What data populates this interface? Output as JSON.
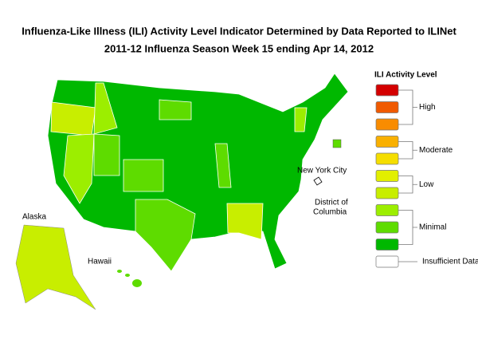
{
  "title": {
    "line1": "Influenza-Like Illness (ILI) Activity Level Indicator Determined by Data Reported to ILINet",
    "line2": "2011-12  Influenza Season Week  15 ending Apr 14, 2012"
  },
  "legend": {
    "title": "ILI Activity Level",
    "groups": [
      {
        "label": "High",
        "colors": [
          "#d40000",
          "#f05a00",
          "#f98c00"
        ]
      },
      {
        "label": "Moderate",
        "colors": [
          "#f9b000",
          "#f5de00"
        ]
      },
      {
        "label": "Low",
        "colors": [
          "#e2ef00",
          "#c8ee00"
        ]
      },
      {
        "label": "Minimal",
        "colors": [
          "#9cee00",
          "#5edc00",
          "#00b800"
        ]
      },
      {
        "label": "Insufficient Data",
        "colors": [
          "#ffffff"
        ]
      }
    ]
  },
  "map_labels": {
    "alaska": "Alaska",
    "hawaii": "Hawaii",
    "nyc": "New York City",
    "dc": [
      "District of",
      "Columbia"
    ]
  }
}
